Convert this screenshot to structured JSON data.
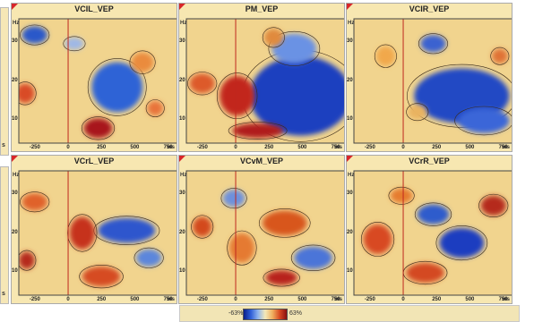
{
  "edge_labels": [
    "s",
    "s"
  ],
  "panels": [
    {
      "id": "p0",
      "title": "VCIL_VEP",
      "hz_label": "Hz",
      "ms_label": "ms",
      "y_ticks": [
        "30",
        "20",
        "10"
      ],
      "x_ticks": [
        "-250",
        "0",
        "250",
        "500",
        "750"
      ],
      "blobs": [
        {
          "cx": 0.1,
          "cy": 0.13,
          "rx": 0.08,
          "ry": 0.07,
          "color": "#2b59c9"
        },
        {
          "cx": 0.04,
          "cy": 0.6,
          "rx": 0.06,
          "ry": 0.08,
          "color": "#d94b27"
        },
        {
          "cx": 0.62,
          "cy": 0.55,
          "rx": 0.16,
          "ry": 0.2,
          "color": "#2d63d6"
        },
        {
          "cx": 0.5,
          "cy": 0.88,
          "rx": 0.09,
          "ry": 0.08,
          "color": "#a8161a"
        },
        {
          "cx": 0.78,
          "cy": 0.35,
          "rx": 0.07,
          "ry": 0.08,
          "color": "#ea8b3d"
        },
        {
          "cx": 0.35,
          "cy": 0.2,
          "rx": 0.06,
          "ry": 0.05,
          "color": "#9fb8e6"
        },
        {
          "cx": 0.86,
          "cy": 0.72,
          "rx": 0.05,
          "ry": 0.06,
          "color": "#e8733a"
        }
      ]
    },
    {
      "id": "p1",
      "title": "PM_VEP",
      "hz_label": "Hz",
      "ms_label": "ms",
      "y_ticks": [
        "30",
        "20",
        "10"
      ],
      "x_ticks": [
        "-250",
        "0",
        "250",
        "500",
        "750"
      ],
      "blobs": [
        {
          "cx": 0.72,
          "cy": 0.62,
          "rx": 0.32,
          "ry": 0.32,
          "color": "#1e3fbf"
        },
        {
          "cx": 0.68,
          "cy": 0.24,
          "rx": 0.14,
          "ry": 0.12,
          "color": "#6b92e4"
        },
        {
          "cx": 0.32,
          "cy": 0.62,
          "rx": 0.11,
          "ry": 0.16,
          "color": "#c2281f"
        },
        {
          "cx": 0.45,
          "cy": 0.9,
          "rx": 0.16,
          "ry": 0.06,
          "color": "#b01e1a"
        },
        {
          "cx": 0.1,
          "cy": 0.52,
          "rx": 0.08,
          "ry": 0.08,
          "color": "#dd5a2c"
        },
        {
          "cx": 0.55,
          "cy": 0.15,
          "rx": 0.06,
          "ry": 0.07,
          "color": "#e08a3e"
        }
      ]
    },
    {
      "id": "p2",
      "title": "VCIR_VEP",
      "hz_label": "Hz",
      "ms_label": "ms",
      "y_ticks": [
        "30",
        "20",
        "10"
      ],
      "x_ticks": [
        "-250",
        "0",
        "250",
        "500",
        "750"
      ],
      "blobs": [
        {
          "cx": 0.68,
          "cy": 0.62,
          "rx": 0.3,
          "ry": 0.22,
          "color": "#2448c4"
        },
        {
          "cx": 0.82,
          "cy": 0.82,
          "rx": 0.16,
          "ry": 0.1,
          "color": "#3a66d8"
        },
        {
          "cx": 0.5,
          "cy": 0.2,
          "rx": 0.08,
          "ry": 0.07,
          "color": "#3b62d0"
        },
        {
          "cx": 0.4,
          "cy": 0.75,
          "rx": 0.06,
          "ry": 0.06,
          "color": "#e9b361"
        },
        {
          "cx": 0.2,
          "cy": 0.3,
          "rx": 0.06,
          "ry": 0.08,
          "color": "#f1a84c"
        },
        {
          "cx": 0.92,
          "cy": 0.3,
          "rx": 0.05,
          "ry": 0.06,
          "color": "#e07234"
        }
      ]
    },
    {
      "id": "p3",
      "title": "VCrL_VEP",
      "hz_label": "Hz",
      "ms_label": "ms",
      "y_ticks": [
        "30",
        "20",
        "10"
      ],
      "x_ticks": [
        "-250",
        "0",
        "250",
        "500",
        "750"
      ],
      "blobs": [
        {
          "cx": 0.68,
          "cy": 0.48,
          "rx": 0.18,
          "ry": 0.1,
          "color": "#2d57cd"
        },
        {
          "cx": 0.4,
          "cy": 0.5,
          "rx": 0.08,
          "ry": 0.13,
          "color": "#c6311f"
        },
        {
          "cx": 0.1,
          "cy": 0.25,
          "rx": 0.08,
          "ry": 0.07,
          "color": "#e0622c"
        },
        {
          "cx": 0.52,
          "cy": 0.85,
          "rx": 0.12,
          "ry": 0.08,
          "color": "#d64b22"
        },
        {
          "cx": 0.82,
          "cy": 0.7,
          "rx": 0.08,
          "ry": 0.07,
          "color": "#5c86dc"
        },
        {
          "cx": 0.05,
          "cy": 0.72,
          "rx": 0.05,
          "ry": 0.07,
          "color": "#b52a1c"
        }
      ]
    },
    {
      "id": "p4",
      "title": "VCvM_VEP",
      "hz_label": "Hz",
      "ms_label": "ms",
      "y_ticks": [
        "30",
        "20",
        "10"
      ],
      "x_ticks": [
        "-250",
        "0",
        "250",
        "500",
        "750"
      ],
      "blobs": [
        {
          "cx": 0.62,
          "cy": 0.42,
          "rx": 0.14,
          "ry": 0.1,
          "color": "#d8561f"
        },
        {
          "cx": 0.35,
          "cy": 0.62,
          "rx": 0.08,
          "ry": 0.12,
          "color": "#e57a32"
        },
        {
          "cx": 0.8,
          "cy": 0.7,
          "rx": 0.12,
          "ry": 0.09,
          "color": "#4b75d8"
        },
        {
          "cx": 0.3,
          "cy": 0.22,
          "rx": 0.07,
          "ry": 0.07,
          "color": "#6d90dc"
        },
        {
          "cx": 0.1,
          "cy": 0.45,
          "rx": 0.06,
          "ry": 0.08,
          "color": "#d3491f"
        },
        {
          "cx": 0.6,
          "cy": 0.86,
          "rx": 0.1,
          "ry": 0.06,
          "color": "#b8241b"
        }
      ]
    },
    {
      "id": "p5",
      "title": "VCrR_VEP",
      "hz_label": "Hz",
      "ms_label": "ms",
      "y_ticks": [
        "30",
        "20",
        "10"
      ],
      "x_ticks": [
        "-250",
        "0",
        "250",
        "500",
        "750"
      ],
      "blobs": [
        {
          "cx": 0.68,
          "cy": 0.58,
          "rx": 0.14,
          "ry": 0.12,
          "color": "#1f3cc0"
        },
        {
          "cx": 0.15,
          "cy": 0.55,
          "rx": 0.09,
          "ry": 0.12,
          "color": "#d84a22"
        },
        {
          "cx": 0.5,
          "cy": 0.35,
          "rx": 0.1,
          "ry": 0.08,
          "color": "#2d5ccc"
        },
        {
          "cx": 0.88,
          "cy": 0.28,
          "rx": 0.08,
          "ry": 0.08,
          "color": "#b52a1c"
        },
        {
          "cx": 0.45,
          "cy": 0.82,
          "rx": 0.12,
          "ry": 0.08,
          "color": "#d44a20"
        },
        {
          "cx": 0.3,
          "cy": 0.2,
          "rx": 0.07,
          "ry": 0.06,
          "color": "#e67b2f"
        }
      ]
    }
  ],
  "legend": {
    "min_label": "-63%",
    "max_label": "63%"
  },
  "chart_data": {
    "type": "heatmap",
    "panels": [
      "VCIL_VEP",
      "PM_VEP",
      "VCIR_VEP",
      "VCrL_VEP",
      "VCvM_VEP",
      "VCrR_VEP"
    ],
    "x_ticks": [
      -250,
      0,
      250,
      500,
      750
    ],
    "x_unit": "ms",
    "y_ticks": [
      10,
      20,
      30
    ],
    "y_unit": "Hz",
    "color_range": [
      -63,
      63
    ],
    "color_unit": "%"
  }
}
